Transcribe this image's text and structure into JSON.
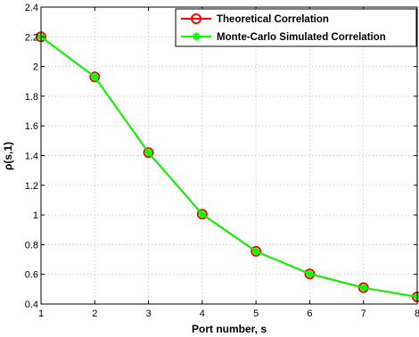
{
  "chart_data": {
    "type": "line",
    "xlabel": "Port number, s",
    "ylabel": "ρ(s,1)",
    "xlim": [
      1,
      8
    ],
    "ylim": [
      0.4,
      2.4
    ],
    "xticks": [
      "1",
      "2",
      "3",
      "4",
      "5",
      "6",
      "7",
      "8"
    ],
    "yticks": [
      "0.4",
      "0.6",
      "0.8",
      "1",
      "1.2",
      "1.4",
      "1.6",
      "1.8",
      "2",
      "2.2",
      "2.4"
    ],
    "grid": true,
    "legend_position": "top-right",
    "x": [
      1,
      2,
      3,
      4,
      5,
      6,
      7,
      8
    ],
    "series": [
      {
        "name": "Theoretical Correlation",
        "values": [
          2.2,
          1.93,
          1.42,
          1.005,
          0.755,
          0.603,
          0.51,
          0.448
        ],
        "color": "#ff0000",
        "marker": "circle"
      },
      {
        "name": "Monte-Carlo Simulated Correlation",
        "values": [
          2.2,
          1.93,
          1.42,
          1.005,
          0.755,
          0.603,
          0.51,
          0.448
        ],
        "color": "#00ff00",
        "marker": "star"
      }
    ]
  }
}
